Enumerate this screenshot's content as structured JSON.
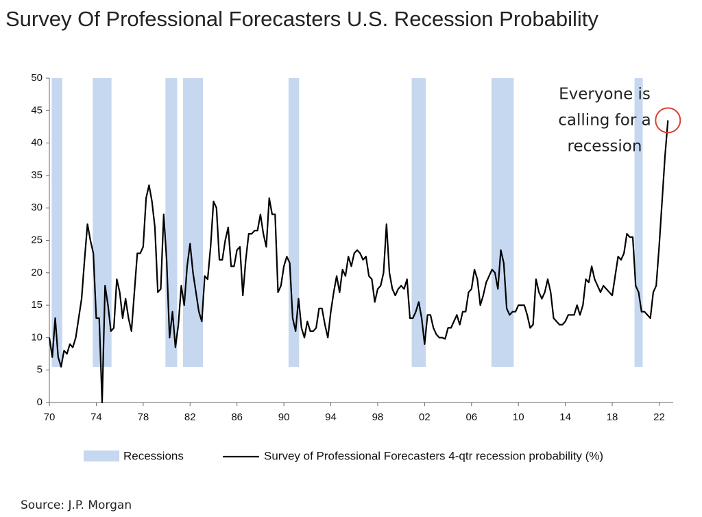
{
  "chart_data": {
    "type": "line",
    "title": "Survey Of Professional Forecasters U.S. Recession Probability",
    "source": "Source: J.P. Morgan",
    "annotation": [
      "Everyone is",
      "calling for a",
      "recession"
    ],
    "xlim": [
      1970,
      2023.2
    ],
    "xticks": [
      {
        "value": 1970,
        "label": "70"
      },
      {
        "value": 1974,
        "label": "74"
      },
      {
        "value": 1978,
        "label": "78"
      },
      {
        "value": 1982,
        "label": "82"
      },
      {
        "value": 1986,
        "label": "86"
      },
      {
        "value": 1990,
        "label": "90"
      },
      {
        "value": 1994,
        "label": "94"
      },
      {
        "value": 1998,
        "label": "98"
      },
      {
        "value": 2002,
        "label": "02"
      },
      {
        "value": 2006,
        "label": "06"
      },
      {
        "value": 2010,
        "label": "10"
      },
      {
        "value": 2014,
        "label": "14"
      },
      {
        "value": 2018,
        "label": "18"
      },
      {
        "value": 2022,
        "label": "22"
      }
    ],
    "ylim": [
      0,
      50
    ],
    "yticks": [
      0,
      5,
      10,
      15,
      20,
      25,
      30,
      35,
      40,
      45,
      50
    ],
    "grid": false,
    "recessions": {
      "name": "Recessions",
      "color": "#c6d7f0",
      "y_range": [
        5.5,
        50
      ],
      "ranges": [
        [
          1970.2,
          1971.1
        ],
        [
          1973.7,
          1975.3
        ],
        [
          1979.9,
          1980.9
        ],
        [
          1981.4,
          1983.1
        ],
        [
          1990.4,
          1991.3
        ],
        [
          2000.9,
          2002.1
        ],
        [
          2007.7,
          2009.6
        ],
        [
          2019.9,
          2020.6
        ]
      ]
    },
    "x": [
      1970,
      1970.25,
      1970.5,
      1970.75,
      1971,
      1971.25,
      1971.5,
      1971.75,
      1972,
      1972.25,
      1972.5,
      1972.75,
      1973,
      1973.25,
      1973.5,
      1973.75,
      1974,
      1974.25,
      1974.5,
      1974.75,
      1975,
      1975.25,
      1975.5,
      1975.75,
      1976,
      1976.25,
      1976.5,
      1976.75,
      1977,
      1977.25,
      1977.5,
      1977.75,
      1978,
      1978.25,
      1978.5,
      1978.75,
      1979,
      1979.25,
      1979.5,
      1979.75,
      1980,
      1980.25,
      1980.5,
      1980.75,
      1981,
      1981.25,
      1981.5,
      1981.75,
      1982,
      1982.25,
      1982.5,
      1982.75,
      1983,
      1983.25,
      1983.5,
      1983.75,
      1984,
      1984.25,
      1984.5,
      1984.75,
      1985,
      1985.25,
      1985.5,
      1985.75,
      1986,
      1986.25,
      1986.5,
      1986.75,
      1987,
      1987.25,
      1987.5,
      1987.75,
      1988,
      1988.25,
      1988.5,
      1988.75,
      1989,
      1989.25,
      1989.5,
      1989.75,
      1990,
      1990.25,
      1990.5,
      1990.75,
      1991,
      1991.25,
      1991.5,
      1991.75,
      1992,
      1992.25,
      1992.5,
      1992.75,
      1993,
      1993.25,
      1993.5,
      1993.75,
      1994,
      1994.25,
      1994.5,
      1994.75,
      1995,
      1995.25,
      1995.5,
      1995.75,
      1996,
      1996.25,
      1996.5,
      1996.75,
      1997,
      1997.25,
      1997.5,
      1997.75,
      1998,
      1998.25,
      1998.5,
      1998.75,
      1999,
      1999.25,
      1999.5,
      1999.75,
      2000,
      2000.25,
      2000.5,
      2000.75,
      2001,
      2001.25,
      2001.5,
      2001.75,
      2002,
      2002.25,
      2002.5,
      2002.75,
      2003,
      2003.25,
      2003.5,
      2003.75,
      2004,
      2004.25,
      2004.5,
      2004.75,
      2005,
      2005.25,
      2005.5,
      2005.75,
      2006,
      2006.25,
      2006.5,
      2006.75,
      2007,
      2007.25,
      2007.5,
      2007.75,
      2008,
      2008.25,
      2008.5,
      2008.75,
      2009,
      2009.25,
      2009.5,
      2009.75,
      2010,
      2010.25,
      2010.5,
      2010.75,
      2011,
      2011.25,
      2011.5,
      2011.75,
      2012,
      2012.25,
      2012.5,
      2012.75,
      2013,
      2013.25,
      2013.5,
      2013.75,
      2014,
      2014.25,
      2014.5,
      2014.75,
      2015,
      2015.25,
      2015.5,
      2015.75,
      2016,
      2016.25,
      2016.5,
      2016.75,
      2017,
      2017.25,
      2017.5,
      2017.75,
      2018,
      2018.25,
      2018.5,
      2018.75,
      2019,
      2019.25,
      2019.5,
      2019.75,
      2020,
      2020.25,
      2020.5,
      2020.75,
      2021,
      2021.25,
      2021.5,
      2021.75,
      2022,
      2022.25,
      2022.5,
      2022.75
    ],
    "series": [
      {
        "name": "Survey of Professional Forecasters 4-qtr recession probability (%)",
        "color": "#000000",
        "values": [
          10,
          7,
          13,
          7,
          5.5,
          8,
          7.5,
          9,
          8.5,
          10,
          13,
          16,
          22,
          27.5,
          25,
          23,
          13,
          13,
          0,
          18,
          15,
          11,
          11.5,
          19,
          17,
          13,
          16,
          13,
          11,
          17,
          23,
          23,
          24,
          31.5,
          33.5,
          31,
          27,
          17,
          17.5,
          29,
          22,
          10,
          14,
          8.5,
          12,
          18,
          15,
          21,
          24.5,
          20,
          17,
          14,
          12.5,
          19.5,
          19,
          24,
          31,
          30,
          22,
          22,
          25,
          27,
          21,
          21,
          23.5,
          24,
          16.5,
          22,
          26,
          26,
          26.5,
          26.5,
          29,
          26,
          24,
          31.5,
          29,
          29,
          17,
          18,
          21,
          22.5,
          21.5,
          13,
          11,
          16,
          11.5,
          10,
          12.5,
          11,
          11,
          11.5,
          14.5,
          14.5,
          12,
          10,
          14,
          17,
          19.5,
          17,
          20.5,
          19.5,
          22.5,
          21,
          23,
          23.5,
          23,
          22,
          22.5,
          19.5,
          19,
          15.5,
          17.5,
          18,
          20,
          27.5,
          20,
          17.5,
          16.5,
          17.5,
          18,
          17.5,
          19,
          13,
          13,
          14,
          15.5,
          13,
          9,
          13.5,
          13.5,
          11.5,
          10.5,
          10,
          10,
          9.8,
          11.5,
          11.5,
          12.5,
          13.5,
          12,
          14,
          14,
          17,
          17.5,
          20.5,
          19,
          15,
          16.5,
          18.5,
          19.5,
          20.5,
          20,
          17.5,
          23.5,
          21.5,
          14.5,
          13.5,
          14,
          14,
          15,
          15,
          15,
          13.5,
          11.5,
          12,
          19,
          17,
          16,
          17,
          19,
          17,
          13,
          12.5,
          12,
          12,
          12.5,
          13.5,
          13.5,
          13.5,
          15,
          13.5,
          15,
          19,
          18.5,
          21,
          19,
          18,
          17,
          18,
          17.5,
          17,
          16.5,
          19.5,
          22.5,
          22,
          23,
          26,
          25.5,
          25.5,
          18,
          17,
          14,
          14,
          13.5,
          13,
          17,
          18,
          24,
          31,
          38,
          43.5
        ]
      }
    ]
  }
}
